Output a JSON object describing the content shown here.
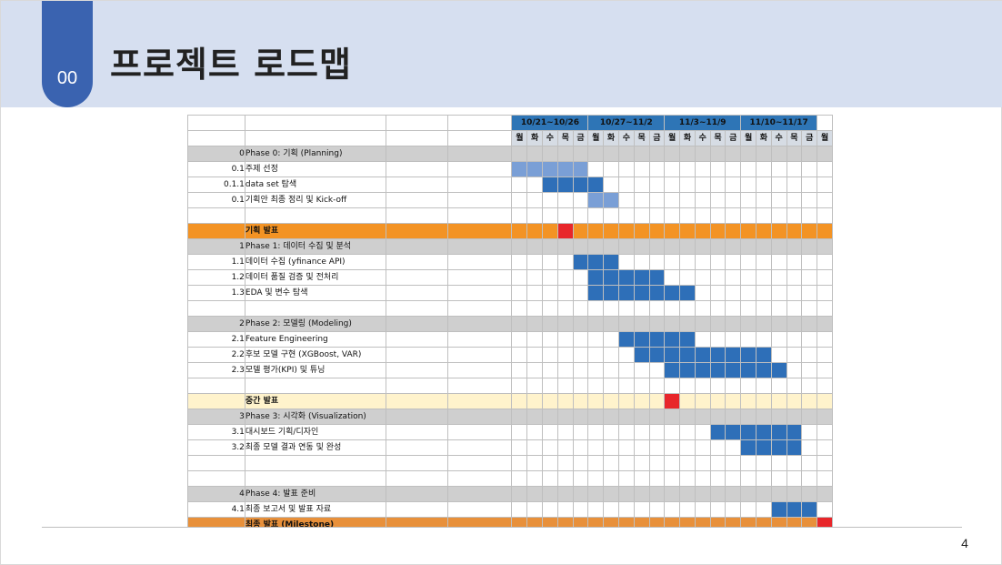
{
  "header": {
    "section_number": "00",
    "title": "프로젝트 로드맵"
  },
  "gantt": {
    "weeks": [
      "10/21~10/26",
      "10/27~11/2",
      "11/3~11/9",
      "11/10~11/17"
    ],
    "days": [
      "월",
      "화",
      "수",
      "목",
      "금",
      "월",
      "화",
      "수",
      "목",
      "금",
      "월",
      "화",
      "수",
      "목",
      "금",
      "월",
      "화",
      "수",
      "목",
      "금",
      "월"
    ],
    "colors": {
      "light": "#7a9fd6",
      "blue": "#2e6fb8",
      "red": "#e8262a",
      "phase": "#cfcfcf",
      "milestone": "#f39324"
    },
    "rows": [
      {
        "id": "0",
        "task": "Phase 0: 기획 (Planning)",
        "type": "phase",
        "bars": []
      },
      {
        "id": "0.1",
        "task": "주제 선정",
        "type": "task",
        "bars": [
          {
            "start": 0,
            "end": 5,
            "color": "light"
          }
        ]
      },
      {
        "id": "0.1.1",
        "task": "data set 탐색",
        "type": "task",
        "bars": [
          {
            "start": 2,
            "end": 6,
            "color": "blue"
          }
        ]
      },
      {
        "id": "0.1",
        "task": "기획안 최종 정리 및 Kick-off",
        "type": "task",
        "bars": [
          {
            "start": 5,
            "end": 7,
            "color": "light"
          }
        ]
      },
      {
        "id": "",
        "task": "",
        "type": "blank",
        "bars": []
      },
      {
        "id": "",
        "task": "기획 발표",
        "type": "milestone",
        "bars": [
          {
            "start": 3,
            "end": 4,
            "color": "red"
          }
        ]
      },
      {
        "id": "1",
        "task": "Phase 1: 데이터 수집 및 분석",
        "type": "phase",
        "bars": []
      },
      {
        "id": "1.1",
        "task": "데이터 수집 (yfinance API)",
        "type": "task",
        "bars": [
          {
            "start": 4,
            "end": 7,
            "color": "blue"
          }
        ]
      },
      {
        "id": "1.2",
        "task": "데이터 품질 검증 및 전처리",
        "type": "task",
        "bars": [
          {
            "start": 5,
            "end": 10,
            "color": "blue"
          }
        ]
      },
      {
        "id": "1.3",
        "task": "EDA 및 변수 탐색",
        "type": "task",
        "bars": [
          {
            "start": 5,
            "end": 12,
            "color": "blue"
          }
        ]
      },
      {
        "id": "",
        "task": "",
        "type": "blank",
        "bars": []
      },
      {
        "id": "2",
        "task": "Phase 2: 모델링 (Modeling)",
        "type": "phase",
        "bars": []
      },
      {
        "id": "2.1",
        "task": "Feature Engineering",
        "type": "task",
        "bars": [
          {
            "start": 7,
            "end": 12,
            "color": "blue"
          }
        ]
      },
      {
        "id": "2.2",
        "task": "후보 모델 구현 (XGBoost, VAR)",
        "type": "task",
        "bars": [
          {
            "start": 8,
            "end": 17,
            "color": "blue"
          }
        ]
      },
      {
        "id": "2.3",
        "task": "모델 평가(KPI) 및 튜닝",
        "type": "task",
        "bars": [
          {
            "start": 10,
            "end": 18,
            "color": "blue"
          }
        ]
      },
      {
        "id": "",
        "task": "",
        "type": "blank",
        "bars": []
      },
      {
        "id": "",
        "task": "중간 발표",
        "type": "mid",
        "bars": [
          {
            "start": 10,
            "end": 11,
            "color": "red"
          }
        ]
      },
      {
        "id": "3",
        "task": "Phase 3: 시각화 (Visualization)",
        "type": "phase",
        "bars": []
      },
      {
        "id": "3.1",
        "task": "대시보드 기획/디자인",
        "type": "task",
        "bars": [
          {
            "start": 13,
            "end": 19,
            "color": "blue"
          }
        ]
      },
      {
        "id": "3.2",
        "task": "최종 모델 결과 연동 및 완성",
        "type": "task",
        "bars": [
          {
            "start": 15,
            "end": 19,
            "color": "blue"
          }
        ]
      },
      {
        "id": "",
        "task": "",
        "type": "blank",
        "bars": []
      },
      {
        "id": "",
        "task": "",
        "type": "blank",
        "bars": []
      },
      {
        "id": "4",
        "task": "Phase 4: 발표 준비",
        "type": "phase",
        "bars": []
      },
      {
        "id": "4.1",
        "task": "최종 보고서 및 발표 자료",
        "type": "task",
        "bars": [
          {
            "start": 17,
            "end": 20,
            "color": "blue"
          }
        ]
      },
      {
        "id": "",
        "task": "최종 발표 (Milestone)",
        "type": "final",
        "bars": [
          {
            "start": 20,
            "end": 21,
            "color": "red"
          }
        ]
      }
    ]
  },
  "footer": {
    "page_number": "4"
  }
}
